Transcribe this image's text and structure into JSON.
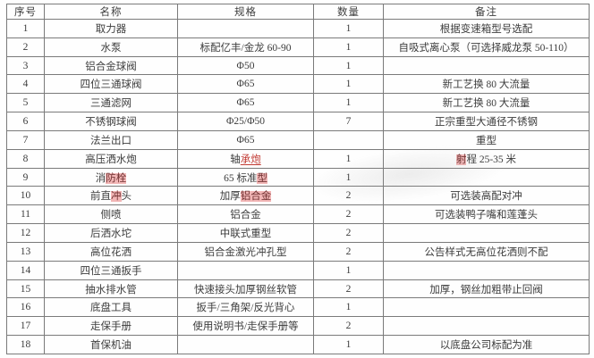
{
  "table": {
    "headers": [
      "序号",
      "名称",
      "规格",
      "数量",
      "备注"
    ],
    "rows": [
      {
        "no": "1",
        "name": "取力器",
        "spec": "",
        "qty": "1",
        "note": "根据变速箱型号选配"
      },
      {
        "no": "2",
        "name": "水泵",
        "spec": "标配亿丰/金龙 60-90",
        "qty": "1",
        "note": "自吸式离心泵（可选择威龙泵 50-110）"
      },
      {
        "no": "3",
        "name": "铝合金球阀",
        "spec": "Φ50",
        "qty": "1",
        "note": ""
      },
      {
        "no": "4",
        "name": "四位三通球阀",
        "spec": "Φ65",
        "qty": "1",
        "note": "新工艺换 80 大流量"
      },
      {
        "no": "5",
        "name": "三通滤网",
        "spec": "Φ65",
        "qty": "1",
        "note": "新工艺换 80 大流量"
      },
      {
        "no": "6",
        "name": "不锈钢球阀",
        "spec": "Φ25/Φ50",
        "qty": "7",
        "note": "正宗重型大通径不锈钢"
      },
      {
        "no": "7",
        "name": "法兰出口",
        "spec": "Φ65",
        "qty": "",
        "note": "重型"
      },
      {
        "no": "8",
        "name": "高压洒水炮",
        "spec": [
          {
            "text": "轴"
          },
          {
            "text": "承炮",
            "style": "red-underline"
          }
        ],
        "qty": "1",
        "note": [
          {
            "text": "射",
            "style": "hl"
          },
          {
            "text": "程 25-35 米"
          }
        ]
      },
      {
        "no": "9",
        "name": [
          {
            "text": "消"
          },
          {
            "text": "防栓",
            "style": "hl"
          }
        ],
        "spec": [
          {
            "text": "65 标准"
          },
          {
            "text": "型",
            "style": "hl"
          }
        ],
        "qty": "1",
        "note": ""
      },
      {
        "no": "10",
        "name": [
          {
            "text": "前直"
          },
          {
            "text": "冲",
            "style": "hl"
          },
          {
            "text": "头"
          }
        ],
        "spec": [
          {
            "text": "加厚"
          },
          {
            "text": "铝合金",
            "style": "hl"
          }
        ],
        "qty": "2",
        "note": "可选装高配对冲"
      },
      {
        "no": "11",
        "name": "侧喷",
        "spec": "铝合金",
        "qty": "2",
        "note": "可选装鸭子嘴和莲蓬头"
      },
      {
        "no": "12",
        "name": "后洒水坨",
        "spec": "中联式重型",
        "qty": "2",
        "note": ""
      },
      {
        "no": "13",
        "name": "高位花洒",
        "spec": "铝合金激光冲孔型",
        "qty": "2",
        "note": "公告样式无高位花洒则不配"
      },
      {
        "no": "14",
        "name": "四位三通扳手",
        "spec": "",
        "qty": "1",
        "note": ""
      },
      {
        "no": "15",
        "name": "抽水排水管",
        "spec": "快速接头加厚钢丝软管",
        "qty": "2",
        "note": "加厚，钢丝加粗带止回阀"
      },
      {
        "no": "16",
        "name": "底盘工具",
        "spec": "扳手/三角架/反光背心",
        "qty": "1",
        "note": ""
      },
      {
        "no": "17",
        "name": "走保手册",
        "spec": "使用说明书/走保手册等",
        "qty": "2",
        "note": ""
      },
      {
        "no": "18",
        "name": "首保机油",
        "spec": "",
        "qty": "1",
        "note": "以底盘公司标配为准"
      }
    ]
  }
}
